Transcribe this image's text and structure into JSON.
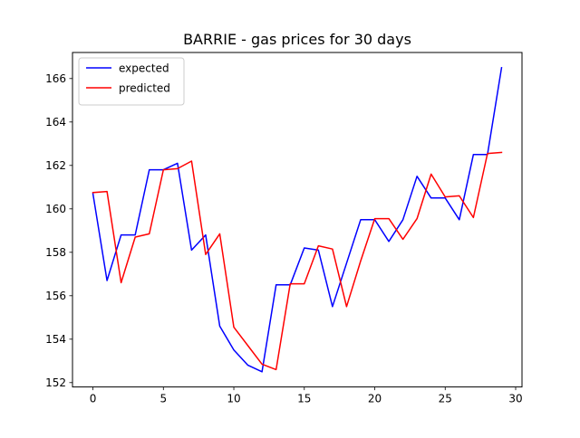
{
  "chart_data": {
    "type": "line",
    "title": "BARRIE - gas prices for 30 days",
    "xlabel": "",
    "ylabel": "",
    "xlim": [
      -1.45,
      30.45
    ],
    "ylim": [
      151.8,
      167.2
    ],
    "xticks": [
      0,
      5,
      10,
      15,
      20,
      25,
      30
    ],
    "yticks": [
      152,
      154,
      156,
      158,
      160,
      162,
      164,
      166
    ],
    "grid": false,
    "legend": "top-left",
    "x": [
      0,
      1,
      2,
      3,
      4,
      5,
      6,
      7,
      8,
      9,
      10,
      11,
      12,
      13,
      14,
      15,
      16,
      17,
      18,
      19,
      20,
      21,
      22,
      23,
      24,
      25,
      26,
      27,
      28,
      29
    ],
    "series": [
      {
        "name": "expected",
        "color": "#0000ff",
        "values": [
          160.7,
          156.7,
          158.8,
          158.8,
          161.8,
          161.8,
          162.1,
          158.1,
          158.8,
          154.6,
          153.5,
          152.8,
          152.5,
          156.5,
          156.5,
          158.2,
          158.1,
          155.5,
          157.5,
          159.5,
          159.5,
          158.5,
          159.5,
          161.5,
          160.5,
          160.5,
          159.5,
          162.5,
          162.5,
          166.5
        ]
      },
      {
        "name": "predicted",
        "color": "#ff0000",
        "values": [
          160.75,
          160.8,
          156.6,
          158.7,
          158.85,
          161.8,
          161.85,
          162.2,
          157.9,
          158.85,
          154.55,
          153.7,
          152.85,
          152.6,
          156.55,
          156.55,
          158.3,
          158.15,
          155.5,
          157.6,
          159.55,
          159.55,
          158.6,
          159.55,
          161.6,
          160.55,
          160.6,
          159.6,
          162.55,
          162.6
        ]
      }
    ]
  }
}
